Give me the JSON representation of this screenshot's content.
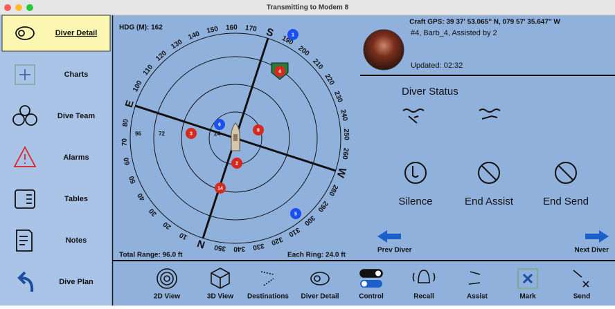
{
  "window": {
    "title": "Transmitting to Modem 8"
  },
  "sidebar": {
    "items": [
      "Diver Detail",
      "Charts",
      "Dive Team",
      "Alarms",
      "Tables",
      "Notes",
      "Dive Plan"
    ]
  },
  "radar": {
    "heading_label": "HDG (M): 162",
    "heading": 162,
    "bearing_labels": [
      "N",
      "10",
      "20",
      "30",
      "40",
      "50",
      "60",
      "70",
      "80",
      "E",
      "100",
      "110",
      "120",
      "130",
      "140",
      "150",
      "160",
      "170",
      "S",
      "190",
      "200",
      "210",
      "220",
      "230",
      "240",
      "250",
      "260",
      "W",
      "280",
      "290",
      "300",
      "310",
      "320",
      "330",
      "340",
      "350"
    ],
    "range_labels": [
      "96",
      "72",
      "48",
      "24"
    ],
    "divers": [
      {
        "label": "1",
        "color": "#1a4ff0"
      },
      {
        "label": "4",
        "color": "#d42a20"
      },
      {
        "label": "6",
        "color": "#1a4ff0"
      },
      {
        "label": "3",
        "color": "#d42a20"
      },
      {
        "label": "8",
        "color": "#d42a20"
      },
      {
        "label": "2",
        "color": "#d42a20"
      },
      {
        "label": "14",
        "color": "#d42a20"
      },
      {
        "label": "5",
        "color": "#1a4ff0"
      }
    ],
    "total_range": "Total Range: 96.0 ft",
    "each_ring": "Each Ring: 24.0 ft"
  },
  "detail": {
    "gps": "Craft GPS: 39 37' 53.065'' N, 079 57' 35.647'' W",
    "diver": "#4, Barb_4, Assisted by 2",
    "updated": "Updated: 02:32",
    "status_title": "Diver Status",
    "actions": [
      "Silence",
      "End Assist",
      "End Send"
    ],
    "prev": "Prev Diver",
    "next": "Next Diver"
  },
  "toolbar": {
    "items": [
      "2D View",
      "3D View",
      "Destinations",
      "Diver Detail",
      "Control",
      "Recall",
      "Assist",
      "Mark",
      "Send"
    ]
  }
}
